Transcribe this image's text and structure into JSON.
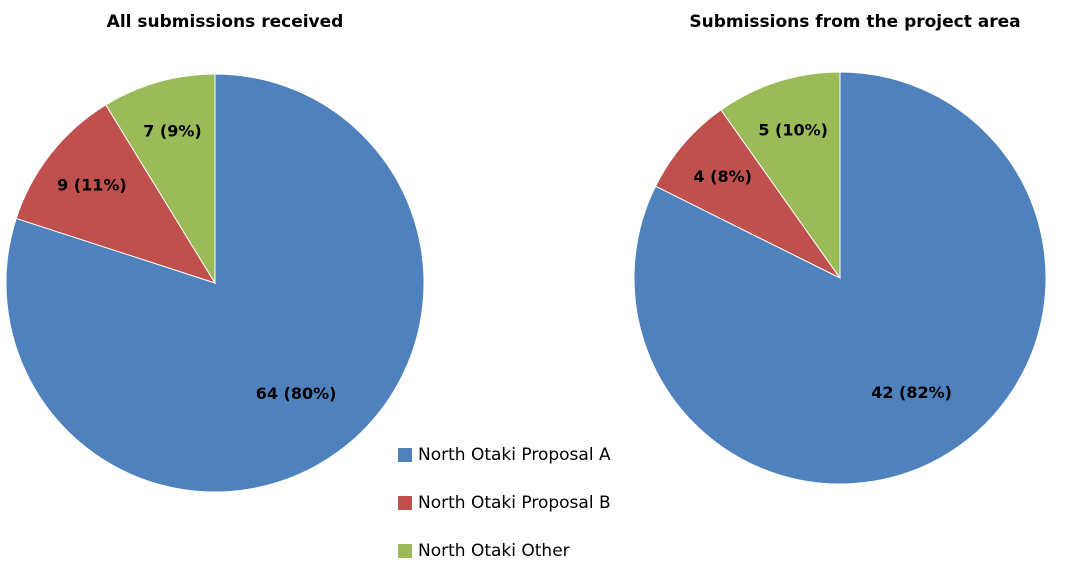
{
  "chart_data": [
    {
      "type": "pie",
      "title": "All submissions received",
      "categories": [
        "North Otaki Proposal A",
        "North Otaki Proposal B",
        "North Otaki Other"
      ],
      "values": [
        64,
        9,
        7
      ],
      "value_labels": [
        "64 (80%)",
        "9 (11%)",
        "7 (9%)"
      ],
      "colors": [
        "#4f81bd",
        "#c0504d",
        "#9bbb59"
      ]
    },
    {
      "type": "pie",
      "title": "Submissions from the project area",
      "categories": [
        "North Otaki Proposal A",
        "North Otaki Proposal B",
        "North Otaki Other"
      ],
      "values": [
        42,
        4,
        5
      ],
      "value_labels": [
        "42 (82%)",
        "4 (8%)",
        "5 (10%)"
      ],
      "colors": [
        "#4f81bd",
        "#c0504d",
        "#9bbb59"
      ]
    }
  ]
}
